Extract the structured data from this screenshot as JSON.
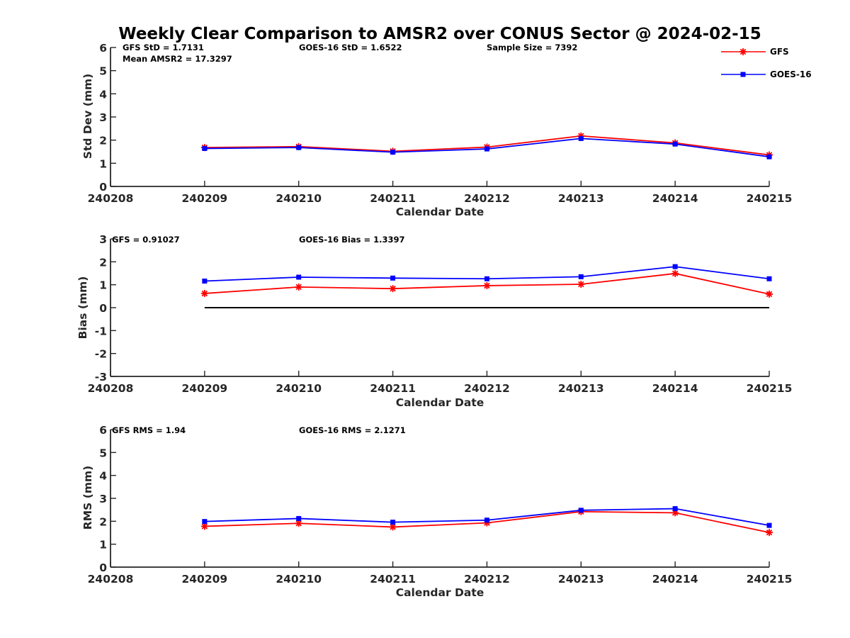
{
  "figure": {
    "title": "Weekly Clear Comparison to AMSR2 over CONUS Sector @ 2024-02-15"
  },
  "colors": {
    "GFS": "#ff0000",
    "GOES-16": "#0000ff",
    "axis": "#262626",
    "zero_line": "#000000"
  },
  "legend": {
    "placement": "top-right",
    "items": [
      {
        "label": "GFS",
        "marker": "asterisk"
      },
      {
        "label": "GOES-16",
        "marker": "square"
      }
    ]
  },
  "panels": [
    {
      "stats": [
        {
          "text": "GFS StD = 1.7131"
        },
        {
          "text": "Mean AMSR2 = 17.3297"
        },
        {
          "text": "GOES-16 StD = 1.6522"
        },
        {
          "text": "Sample Size = 7392"
        }
      ]
    },
    {
      "stats": [
        {
          "text": "GFS = 0.91027"
        },
        {
          "text": "GOES-16 Bias  = 1.3397"
        }
      ]
    },
    {
      "stats": [
        {
          "text": "GFS RMS = 1.94"
        },
        {
          "text": "GOES-16 RMS = 2.1271"
        }
      ]
    }
  ],
  "chart_data": [
    {
      "type": "line",
      "xlabel": "Calendar Date",
      "ylabel": "Std Dev (mm)",
      "x_ticks": [
        "240208",
        "240209",
        "240210",
        "240211",
        "240212",
        "240213",
        "240214",
        "240215"
      ],
      "xlim": [
        "240208",
        "240215"
      ],
      "ylim": [
        0,
        6
      ],
      "y_ticks": [
        0,
        1,
        2,
        3,
        4,
        5,
        6
      ],
      "x": [
        "240209",
        "240210",
        "240211",
        "240212",
        "240213",
        "240214",
        "240215"
      ],
      "series": [
        {
          "name": "GFS",
          "values": [
            1.68,
            1.72,
            1.52,
            1.7,
            2.18,
            1.88,
            1.36
          ]
        },
        {
          "name": "GOES-16",
          "values": [
            1.64,
            1.68,
            1.48,
            1.62,
            2.07,
            1.83,
            1.28
          ]
        }
      ]
    },
    {
      "type": "line",
      "xlabel": "Calendar Date",
      "ylabel": "Bias (mm)",
      "x_ticks": [
        "240208",
        "240209",
        "240210",
        "240211",
        "240212",
        "240213",
        "240214",
        "240215"
      ],
      "xlim": [
        "240208",
        "240215"
      ],
      "ylim": [
        -3,
        3
      ],
      "y_ticks": [
        -3,
        -2,
        -1,
        0,
        1,
        2,
        3
      ],
      "reference_line": 0,
      "x": [
        "240209",
        "240210",
        "240211",
        "240212",
        "240213",
        "240214",
        "240215"
      ],
      "series": [
        {
          "name": "GFS",
          "values": [
            0.62,
            0.9,
            0.83,
            0.96,
            1.02,
            1.49,
            0.59
          ]
        },
        {
          "name": "GOES-16",
          "values": [
            1.16,
            1.33,
            1.29,
            1.26,
            1.35,
            1.79,
            1.26
          ]
        }
      ]
    },
    {
      "type": "line",
      "xlabel": "Calendar Date",
      "ylabel": "RMS (mm)",
      "x_ticks": [
        "240208",
        "240209",
        "240210",
        "240211",
        "240212",
        "240213",
        "240214",
        "240215"
      ],
      "xlim": [
        "240208",
        "240215"
      ],
      "ylim": [
        0,
        6
      ],
      "y_ticks": [
        0,
        1,
        2,
        3,
        4,
        5,
        6
      ],
      "x": [
        "240209",
        "240210",
        "240211",
        "240212",
        "240213",
        "240214",
        "240215"
      ],
      "series": [
        {
          "name": "GFS",
          "values": [
            1.78,
            1.91,
            1.75,
            1.93,
            2.42,
            2.37,
            1.51
          ]
        },
        {
          "name": "GOES-16",
          "values": [
            1.99,
            2.12,
            1.96,
            2.05,
            2.48,
            2.55,
            1.82
          ]
        }
      ]
    }
  ]
}
